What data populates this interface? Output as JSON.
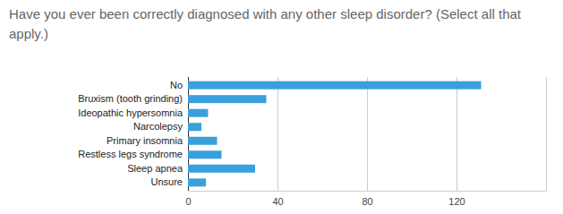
{
  "chart_data": {
    "type": "bar",
    "orientation": "horizontal",
    "title": "Have you ever been correctly diagnosed with any other sleep disorder? (Select all that apply.)",
    "categories": [
      "No",
      "Bruxism (tooth grinding)",
      "Ideopathic hypersomnia",
      "Narcolepsy",
      "Primary insomnia",
      "Restless legs syndrome",
      "Sleep apnea",
      "Unsure"
    ],
    "values": [
      131,
      35,
      9,
      6,
      13,
      15,
      30,
      8
    ],
    "color": "#3aa0dc",
    "xlim": [
      0,
      160
    ],
    "xticks": [
      0,
      40,
      80,
      120
    ],
    "grid": true
  }
}
